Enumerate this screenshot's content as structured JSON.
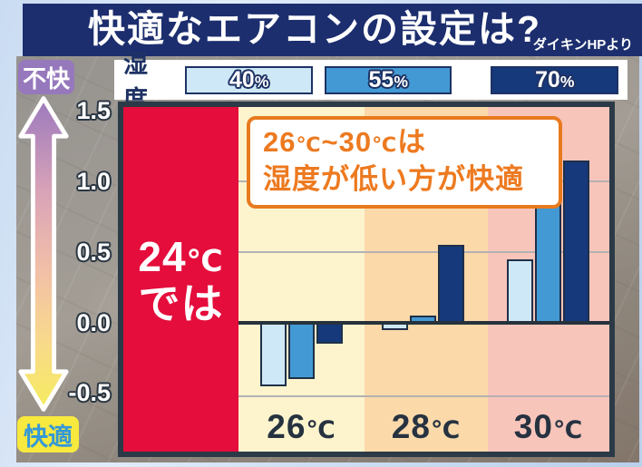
{
  "header": {
    "title": "快適なエアコンの設定は?",
    "source": "ダイキンHPより"
  },
  "legend": {
    "title": "湿度"
  },
  "axis": {
    "top_label": "不快",
    "bottom_label": "快適"
  },
  "highlight": {
    "label": "24℃\nでは"
  },
  "annotation": {
    "text": "26℃~30℃は\n湿度が低い方が快適"
  },
  "chart_data": {
    "type": "bar",
    "title": "快適なエアコンの設定は?",
    "categories": [
      "26℃",
      "28℃",
      "30℃"
    ],
    "series": [
      {
        "name": "40%",
        "color": "#cfe8f7",
        "values": [
          -0.45,
          -0.05,
          0.45
        ]
      },
      {
        "name": "55%",
        "color": "#4399d3",
        "values": [
          -0.4,
          0.05,
          0.85
        ]
      },
      {
        "name": "70%",
        "color": "#16397b",
        "values": [
          -0.15,
          0.55,
          1.15
        ]
      }
    ],
    "yticks": [
      "1.5",
      "1.0",
      "0.5",
      "0.0",
      "-0.5"
    ],
    "ylim": [
      -0.9,
      1.5
    ],
    "grid": true,
    "legend_position": "top",
    "column_bg": [
      "#fdf4cd",
      "#fbd9a9",
      "#f8c5bb"
    ],
    "highlight_column_label": "24℃では",
    "annotation": "26℃~30℃は湿度が低い方が快適",
    "axis_meaning": {
      "up": "不快",
      "down": "快適"
    }
  },
  "colors": {
    "navy": "#1c2e6e",
    "red": "#e40d3c",
    "orange": "#e87a1e",
    "orange_text": "#ed7a20",
    "purple": "#9678bc",
    "yellow": "#f7e93e",
    "badge_blue": "#3598d6"
  }
}
